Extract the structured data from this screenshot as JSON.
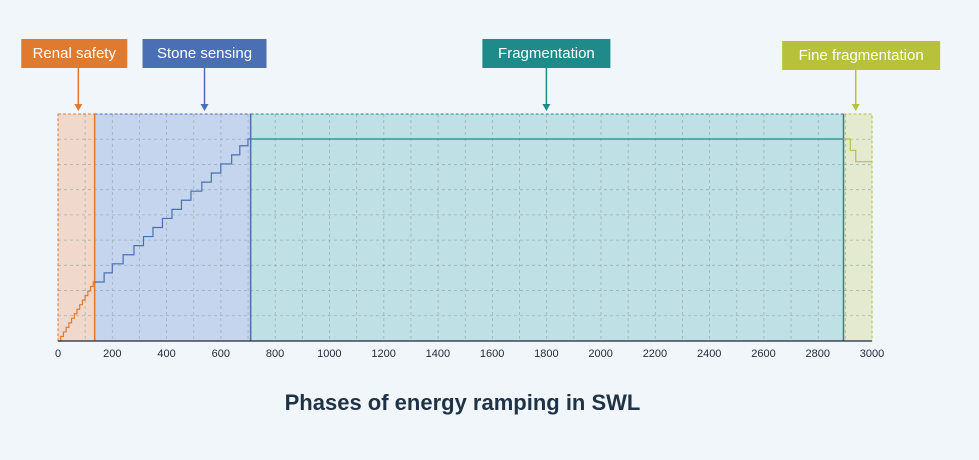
{
  "chart_data": {
    "type": "area",
    "title": "Phases of energy ramping in SWL",
    "xlabel": "",
    "ylabel": "",
    "xlim": [
      0,
      3000
    ],
    "ylim": [
      0,
      10
    ],
    "x_ticks": [
      0,
      200,
      400,
      600,
      800,
      1000,
      1200,
      1400,
      1600,
      1800,
      2000,
      2200,
      2400,
      2600,
      2800,
      3000
    ],
    "grid": true,
    "legend": "none",
    "phases": [
      {
        "label": "Renal safety",
        "x_start": 0,
        "x_end": 135,
        "color": "#e07a2f",
        "fill": "#f0d9cc"
      },
      {
        "label": "Stone sensing",
        "x_start": 135,
        "x_end": 710,
        "color": "#4a6fb5",
        "fill": "#c6d5ee"
      },
      {
        "label": "Fragmentation",
        "x_start": 710,
        "x_end": 2895,
        "color": "#1f8a8a",
        "fill": "#bfe0e4"
      },
      {
        "label": "Fine fragmentation",
        "x_start": 2895,
        "x_end": 3000,
        "color": "#b7c23a",
        "fill": "#e4ead0"
      }
    ],
    "energy_steps": [
      {
        "x": [
          0,
          10,
          20,
          30,
          40,
          50,
          60,
          70,
          80,
          90,
          100,
          110,
          120,
          130,
          135
        ],
        "y": [
          0,
          0.2,
          0.4,
          0.6,
          0.8,
          1.0,
          1.2,
          1.4,
          1.6,
          1.8,
          2.0,
          2.2,
          2.4,
          2.6,
          2.6
        ]
      },
      {
        "x": [
          135,
          170,
          200,
          240,
          280,
          315,
          350,
          385,
          420,
          455,
          490,
          530,
          565,
          600,
          640,
          670,
          700,
          710
        ],
        "y": [
          2.6,
          3.0,
          3.4,
          3.8,
          4.2,
          4.6,
          5.0,
          5.4,
          5.8,
          6.2,
          6.6,
          7.0,
          7.4,
          7.8,
          8.2,
          8.6,
          8.9,
          8.9
        ]
      },
      {
        "x": [
          710,
          2895
        ],
        "y": [
          8.9,
          8.9
        ]
      },
      {
        "x": [
          2895,
          2920,
          2940,
          3000
        ],
        "y": [
          8.9,
          8.4,
          7.9,
          7.9
        ]
      }
    ]
  }
}
